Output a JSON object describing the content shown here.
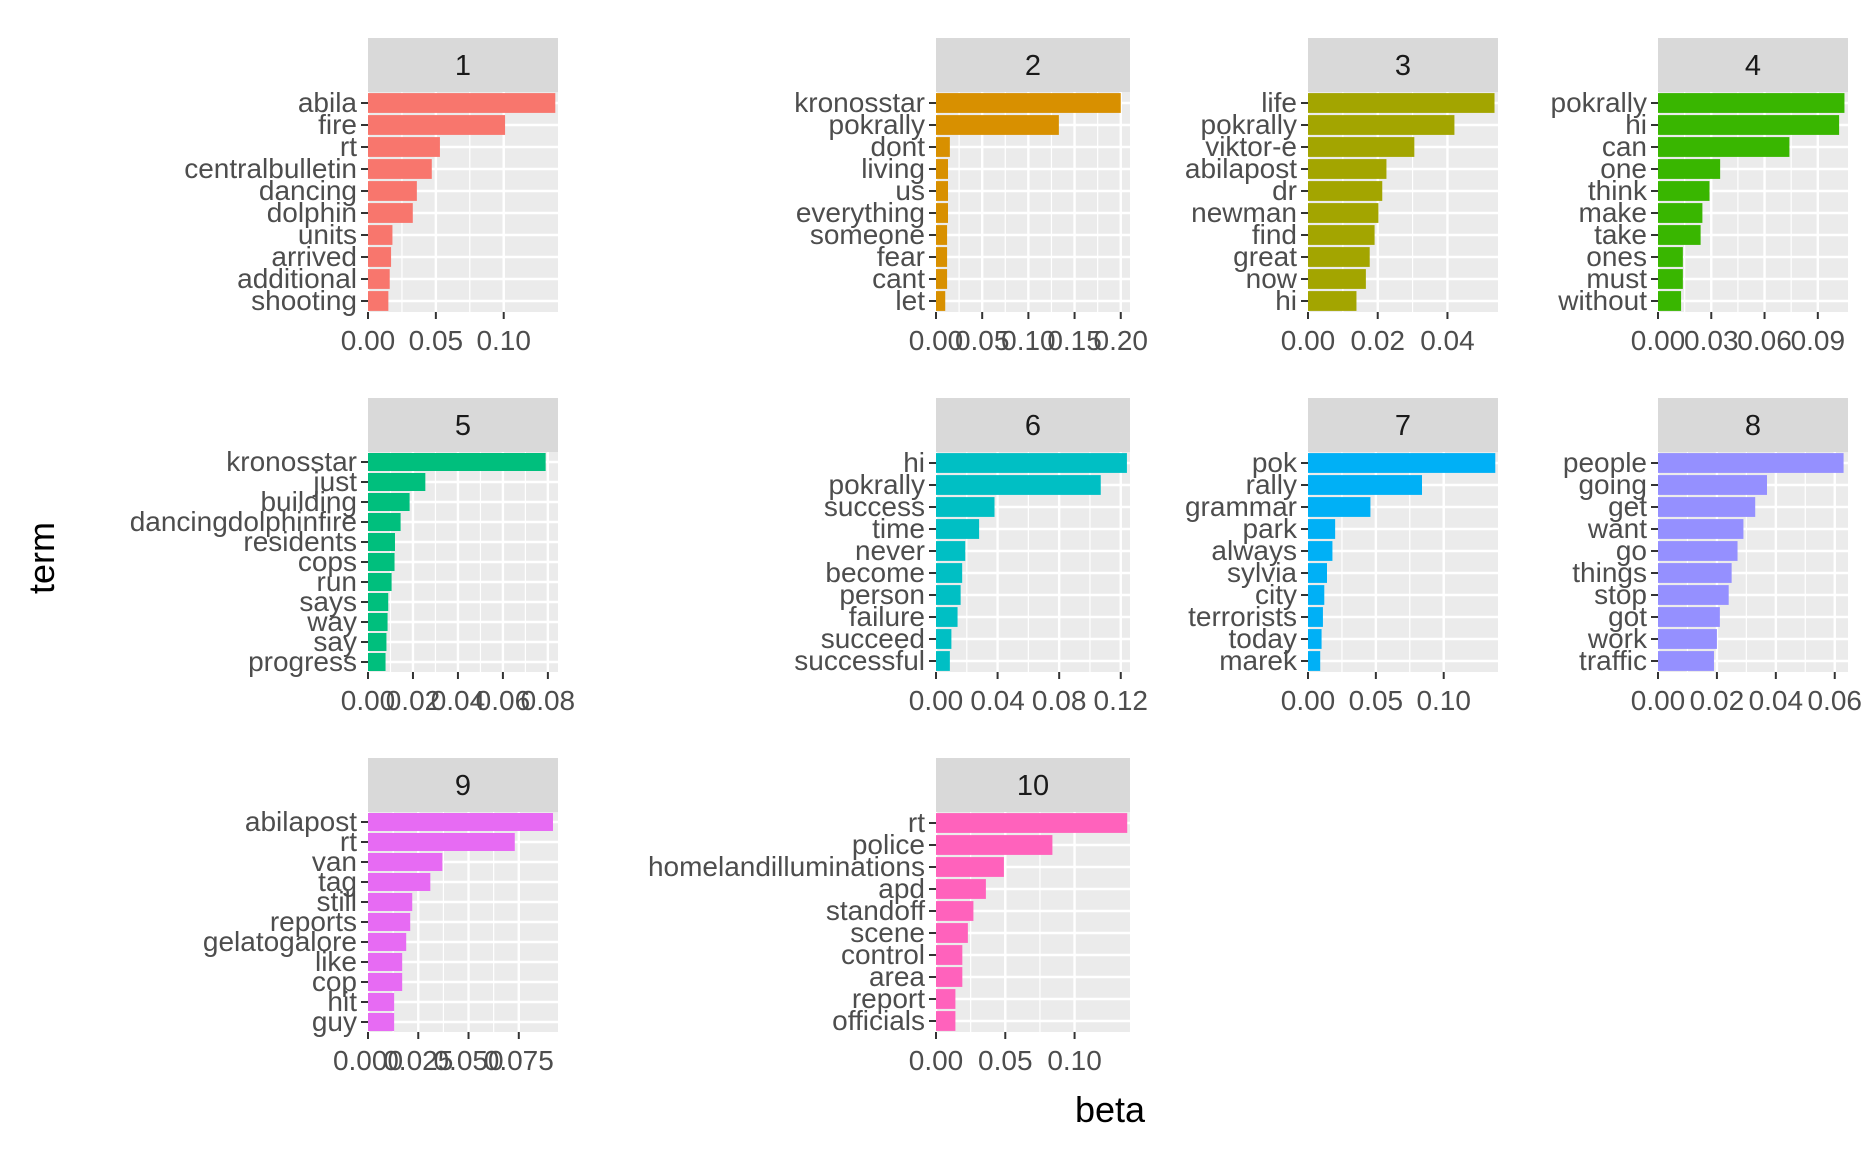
{
  "chart_data": {
    "type": "bar",
    "orientation": "horizontal",
    "facet_by": "topic",
    "xlabel": "beta",
    "ylabel": "term",
    "grid": true,
    "legend": "none",
    "panels": [
      {
        "topic": "1",
        "color": "#F8766D",
        "xlim": [
          0,
          0.14
        ],
        "ticks": [
          0,
          0.05,
          0.1
        ],
        "tick_labels": [
          "0.00",
          "0.05",
          "0.10"
        ],
        "terms": [
          "abila",
          "fire",
          "rt",
          "centralbulletin",
          "dancing",
          "dolphin",
          "units",
          "arrived",
          "additional",
          "shooting"
        ],
        "values": [
          0.138,
          0.101,
          0.053,
          0.047,
          0.036,
          0.033,
          0.018,
          0.017,
          0.016,
          0.015
        ]
      },
      {
        "topic": "2",
        "color": "#D89000",
        "xlim": [
          0,
          0.21
        ],
        "ticks": [
          0,
          0.05,
          0.1,
          0.15,
          0.2
        ],
        "tick_labels": [
          "0.00",
          "0.05",
          "0.10",
          "0.15",
          "0.20"
        ],
        "terms": [
          "kronosstar",
          "pokrally",
          "dont",
          "living",
          "us",
          "everything",
          "someone",
          "fear",
          "cant",
          "let"
        ],
        "values": [
          0.2,
          0.133,
          0.015,
          0.013,
          0.013,
          0.013,
          0.012,
          0.012,
          0.012,
          0.01
        ]
      },
      {
        "topic": "3",
        "color": "#A3A500",
        "xlim": [
          0,
          0.0545
        ],
        "ticks": [
          0,
          0.02,
          0.04
        ],
        "tick_labels": [
          "0.00",
          "0.02",
          "0.04"
        ],
        "terms": [
          "life",
          "pokrally",
          "viktor-e",
          "abilapost",
          "dr",
          "newman",
          "find",
          "great",
          "now",
          "hi"
        ],
        "values": [
          0.0535,
          0.042,
          0.0305,
          0.0225,
          0.0213,
          0.0202,
          0.0191,
          0.0177,
          0.0166,
          0.0139
        ]
      },
      {
        "topic": "4",
        "color": "#39B600",
        "xlim": [
          0,
          0.107
        ],
        "ticks": [
          0,
          0.03,
          0.06,
          0.09
        ],
        "tick_labels": [
          "0.00",
          "0.03",
          "0.06",
          "0.09"
        ],
        "terms": [
          "pokrally",
          "hi",
          "can",
          "one",
          "think",
          "make",
          "take",
          "ones",
          "must",
          "without"
        ],
        "values": [
          0.105,
          0.102,
          0.074,
          0.035,
          0.029,
          0.025,
          0.024,
          0.014,
          0.014,
          0.013
        ]
      },
      {
        "topic": "5",
        "color": "#00BF7D",
        "xlim": [
          0,
          0.0845
        ],
        "ticks": [
          0,
          0.02,
          0.04,
          0.06,
          0.08
        ],
        "tick_labels": [
          "0.00",
          "0.02",
          "0.04",
          "0.06",
          "0.08"
        ],
        "terms": [
          "kronosstar",
          "just",
          "building",
          "dancingdolphinfire",
          "residents",
          "cops",
          "run",
          "says",
          "way",
          "say",
          "progress"
        ],
        "values": [
          0.079,
          0.0255,
          0.0185,
          0.0145,
          0.012,
          0.0118,
          0.0105,
          0.009,
          0.0087,
          0.0082,
          0.0078
        ]
      },
      {
        "topic": "6",
        "color": "#00BFC4",
        "xlim": [
          0,
          0.126
        ],
        "ticks": [
          0,
          0.04,
          0.08,
          0.12
        ],
        "tick_labels": [
          "0.00",
          "0.04",
          "0.08",
          "0.12"
        ],
        "terms": [
          "hi",
          "pokrally",
          "success",
          "time",
          "never",
          "become",
          "person",
          "failure",
          "succeed",
          "successful"
        ],
        "values": [
          0.124,
          0.107,
          0.038,
          0.028,
          0.019,
          0.017,
          0.016,
          0.014,
          0.01,
          0.009
        ]
      },
      {
        "topic": "7",
        "color": "#00B0F6",
        "xlim": [
          0,
          0.14
        ],
        "ticks": [
          0,
          0.05,
          0.1
        ],
        "tick_labels": [
          "0.00",
          "0.05",
          "0.10"
        ],
        "terms": [
          "pok",
          "rally",
          "grammar",
          "park",
          "always",
          "sylvia",
          "city",
          "terrorists",
          "today",
          "marek"
        ],
        "values": [
          0.138,
          0.084,
          0.046,
          0.02,
          0.018,
          0.014,
          0.012,
          0.011,
          0.01,
          0.009
        ]
      },
      {
        "topic": "8",
        "color": "#9590FF",
        "xlim": [
          0,
          0.0645
        ],
        "ticks": [
          0,
          0.02,
          0.04,
          0.06
        ],
        "tick_labels": [
          "0.00",
          "0.02",
          "0.04",
          "0.06"
        ],
        "terms": [
          "people",
          "going",
          "get",
          "want",
          "go",
          "things",
          "stop",
          "got",
          "work",
          "traffic"
        ],
        "values": [
          0.063,
          0.037,
          0.033,
          0.029,
          0.027,
          0.025,
          0.024,
          0.021,
          0.02,
          0.019
        ]
      },
      {
        "topic": "9",
        "color": "#E76BF3",
        "xlim": [
          0,
          0.0945
        ],
        "ticks": [
          0,
          0.025,
          0.05,
          0.075
        ],
        "tick_labels": [
          "0.000",
          "0.025",
          "0.050",
          "0.075"
        ],
        "terms": [
          "abilapost",
          "rt",
          "van",
          "tag",
          "still",
          "reports",
          "gelatogalore",
          "like",
          "cop",
          "hit",
          "guy"
        ],
        "values": [
          0.092,
          0.073,
          0.037,
          0.031,
          0.022,
          0.021,
          0.019,
          0.017,
          0.017,
          0.013,
          0.013
        ]
      },
      {
        "topic": "10",
        "color": "#FF62BC",
        "xlim": [
          0,
          0.14
        ],
        "ticks": [
          0,
          0.05,
          0.1
        ],
        "tick_labels": [
          "0.00",
          "0.05",
          "0.10"
        ],
        "terms": [
          "rt",
          "police",
          "homelandilluminations",
          "apd",
          "standoff",
          "scene",
          "control",
          "area",
          "report",
          "officials"
        ],
        "values": [
          0.138,
          0.084,
          0.049,
          0.036,
          0.027,
          0.023,
          0.019,
          0.019,
          0.014,
          0.014
        ]
      }
    ]
  }
}
